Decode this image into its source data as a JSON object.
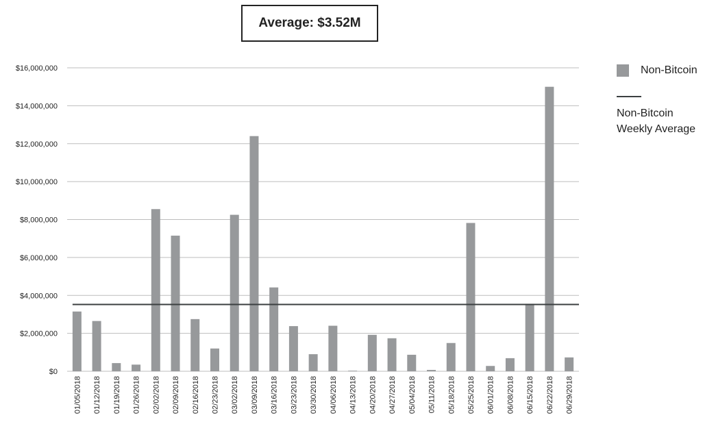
{
  "title_box": {
    "text": "Average: $3.52M"
  },
  "legend": {
    "bar_label": "Non-Bitcoin",
    "line_label_1": "Non-Bitcoin",
    "line_label_2": "Weekly Average"
  },
  "colors": {
    "bar": "#97999b",
    "avg_line": "#3b3f40",
    "grid": "#bdbdbd"
  },
  "chart_data": {
    "type": "bar",
    "title": "Average: $3.52M",
    "categories": [
      "01/05/2018",
      "01/12/2018",
      "01/19/2018",
      "01/26/2018",
      "02/02/2018",
      "02/09/2018",
      "02/16/2018",
      "02/23/2018",
      "03/02/2018",
      "03/09/2018",
      "03/16/2018",
      "03/23/2018",
      "03/30/2018",
      "04/06/2018",
      "04/13/2018",
      "04/20/2018",
      "04/27/2018",
      "05/04/2018",
      "05/11/2018",
      "05/18/2018",
      "05/25/2018",
      "06/01/2018",
      "06/08/2018",
      "06/15/2018",
      "06/22/2018",
      "06/29/2018"
    ],
    "series": [
      {
        "name": "Non-Bitcoin",
        "values": [
          3150000,
          2650000,
          430000,
          350000,
          8550000,
          7150000,
          2750000,
          1200000,
          8250000,
          12400000,
          4420000,
          2380000,
          900000,
          2400000,
          30000,
          1920000,
          1740000,
          870000,
          70000,
          1490000,
          7820000,
          280000,
          690000,
          3560000,
          15000000,
          730000
        ]
      }
    ],
    "average": {
      "name": "Non-Bitcoin Weekly Average",
      "value": 3520000
    },
    "yticks": [
      "$0",
      "$2,000,000",
      "$4,000,000",
      "$6,000,000",
      "$8,000,000",
      "$10,000,000",
      "$12,000,000",
      "$14,000,000",
      "$16,000,000"
    ],
    "ylim": [
      0,
      16000000
    ],
    "grid": true,
    "legend_position": "right"
  }
}
